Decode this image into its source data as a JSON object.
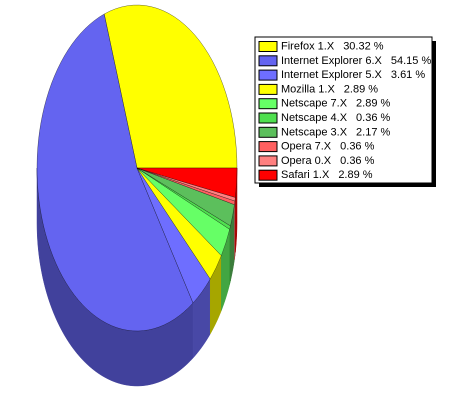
{
  "chart_data": {
    "type": "pie",
    "categories": [
      "Firefox 1.X",
      "Internet Explorer 6.X",
      "Internet Explorer 5.X",
      "Mozilla 1.X",
      "Netscape 7.X",
      "Netscape 4.X",
      "Netscape 3.X",
      "Opera 7.X",
      "Opera 0.X",
      "Safari 1.X"
    ],
    "values": [
      30.32,
      54.15,
      3.61,
      2.89,
      2.89,
      0.36,
      2.17,
      0.36,
      0.36,
      2.89
    ],
    "value_labels": [
      "30.32 %",
      "54.15 %",
      "3.61 %",
      "2.89 %",
      "2.89 %",
      "0.36 %",
      "2.17 %",
      "0.36 %",
      "0.36 %",
      "2.89 %"
    ],
    "colors": [
      "#ffff00",
      "#6464f0",
      "#6e6eff",
      "#ffff00",
      "#66ff66",
      "#4fe04f",
      "#5cbf5c",
      "#ff6060",
      "#ff8080",
      "#ff0000"
    ]
  }
}
